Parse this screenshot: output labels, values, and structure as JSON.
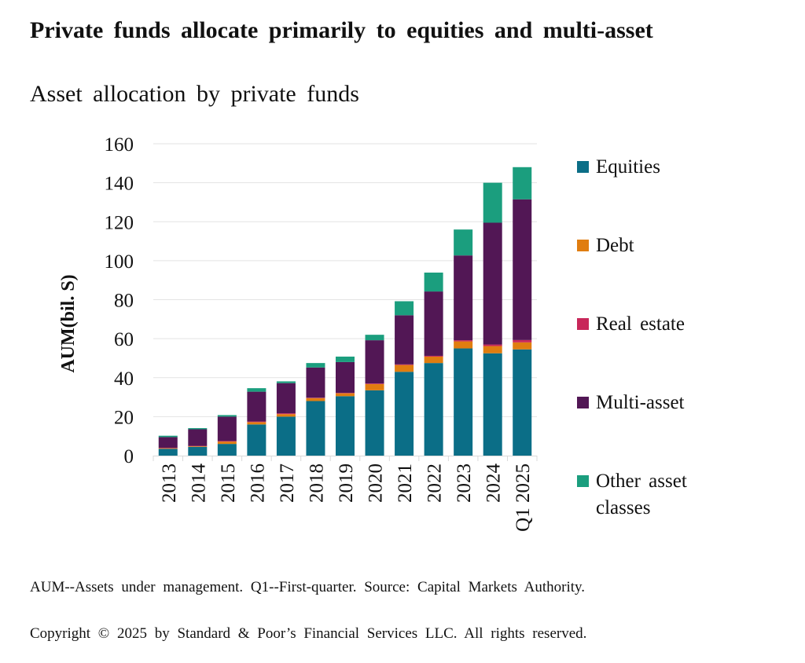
{
  "header": {
    "title": "Private funds allocate primarily to equities and multi-asset",
    "subtitle": "Asset allocation by private funds"
  },
  "footer": {
    "note": "AUM--Assets under management. Q1--First-quarter. Source: Capital Markets Authority.",
    "copyright": "Copyright © 2025 by Standard & Poor’s Financial Services LLC. All rights reserved."
  },
  "chart_data": {
    "type": "bar",
    "stacked": true,
    "title": "Asset allocation by private funds",
    "xlabel": "",
    "ylabel": "AUM(bil. S)",
    "ylim": [
      0,
      160
    ],
    "yticks": [
      0,
      20,
      40,
      60,
      80,
      100,
      120,
      140,
      160
    ],
    "ytick_labels": [
      "0",
      "20",
      "40",
      "60",
      "80",
      "100",
      "120",
      "140",
      "160"
    ],
    "grid": "horizontal",
    "legend_position": "right",
    "categories": [
      "2013",
      "2014",
      "2015",
      "2016",
      "2017",
      "2018",
      "2019",
      "2020",
      "2021",
      "2022",
      "2023",
      "2024",
      "Q1 2025"
    ],
    "series": [
      {
        "name": "Equities",
        "color": "#0b6e87",
        "values": [
          3.5,
          4.5,
          6.0,
          16.0,
          20.0,
          28.0,
          30.5,
          33.5,
          43.0,
          47.5,
          55.0,
          52.5,
          54.5
        ]
      },
      {
        "name": "Debt",
        "color": "#e07d10",
        "values": [
          0.3,
          0.3,
          1.2,
          1.2,
          1.3,
          1.5,
          1.5,
          3.2,
          3.5,
          3.3,
          3.6,
          3.7,
          3.6
        ]
      },
      {
        "name": "Real estate",
        "color": "#c8275a",
        "values": [
          0.2,
          0.2,
          0.3,
          0.3,
          0.4,
          0.2,
          0.2,
          0.3,
          0.3,
          0.4,
          0.6,
          0.8,
          1.2
        ]
      },
      {
        "name": "Multi-asset",
        "color": "#521755",
        "values": [
          5.5,
          8.5,
          12.5,
          15.3,
          15.5,
          15.5,
          15.8,
          22.2,
          25.2,
          33.0,
          43.5,
          62.5,
          72.2
        ]
      },
      {
        "name": "Other asset classes",
        "color": "#1b9e7e",
        "values": [
          0.7,
          0.6,
          0.8,
          1.8,
          0.9,
          2.3,
          2.8,
          2.8,
          7.2,
          9.7,
          13.3,
          20.5,
          16.5
        ]
      }
    ]
  }
}
